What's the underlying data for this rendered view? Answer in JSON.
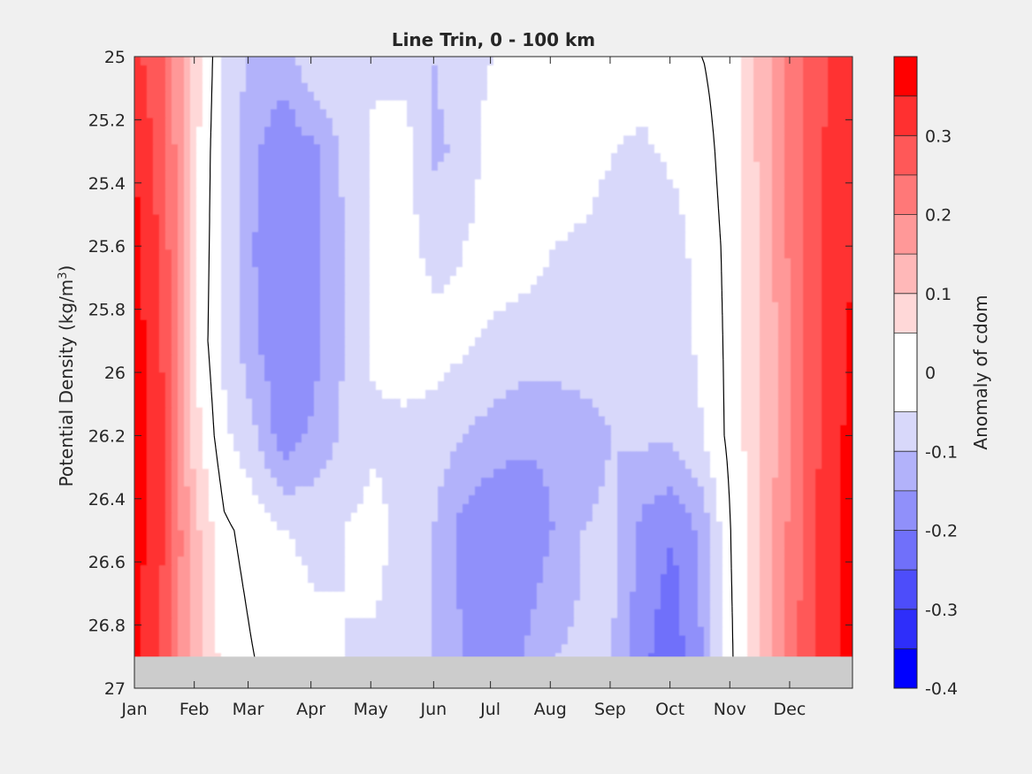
{
  "chart_data": {
    "type": "heatmap",
    "title": "Line Trin, 0 - 100 km",
    "xlabel": "",
    "ylabel_main": "Potential Density (kg/m",
    "ylabel_sup": "3",
    "ylabel_close": ")",
    "xlim": [
      0,
      12
    ],
    "ylim": [
      25,
      27
    ],
    "y_reversed": true,
    "x_ticks": [
      {
        "v": 0.0,
        "label": "Jan"
      },
      {
        "v": 1.0,
        "label": "Feb"
      },
      {
        "v": 1.9,
        "label": "Mar"
      },
      {
        "v": 2.95,
        "label": "Apr"
      },
      {
        "v": 3.95,
        "label": "May"
      },
      {
        "v": 5.0,
        "label": "Jun"
      },
      {
        "v": 5.95,
        "label": "Jul"
      },
      {
        "v": 6.95,
        "label": "Aug"
      },
      {
        "v": 7.95,
        "label": "Sep"
      },
      {
        "v": 8.95,
        "label": "Oct"
      },
      {
        "v": 9.95,
        "label": "Nov"
      },
      {
        "v": 10.95,
        "label": "Dec"
      }
    ],
    "y_ticks": [
      {
        "v": 25.0,
        "label": "25"
      },
      {
        "v": 25.2,
        "label": "25.2"
      },
      {
        "v": 25.4,
        "label": "25.4"
      },
      {
        "v": 25.6,
        "label": "25.6"
      },
      {
        "v": 25.8,
        "label": "25.8"
      },
      {
        "v": 26.0,
        "label": "26"
      },
      {
        "v": 26.2,
        "label": "26.2"
      },
      {
        "v": 26.4,
        "label": "26.4"
      },
      {
        "v": 26.6,
        "label": "26.6"
      },
      {
        "v": 26.8,
        "label": "26.8"
      },
      {
        "v": 27.0,
        "label": "27"
      }
    ],
    "masked_below_density": 26.9,
    "mask_color": "#cccccc",
    "colorbar": {
      "label": "Anomaly of cdom",
      "range": [
        -0.4,
        0.4
      ],
      "levels": [
        -0.4,
        -0.35,
        -0.3,
        -0.25,
        -0.2,
        -0.15,
        -0.1,
        -0.05,
        0.05,
        0.1,
        0.15,
        0.2,
        0.25,
        0.3,
        0.35,
        0.4
      ],
      "colors": [
        "#0000ff",
        "#2e2efa",
        "#4d4dfa",
        "#7070fa",
        "#9090fa",
        "#b2b2fa",
        "#d8d8fa",
        "#ffffff",
        "#ffd8d8",
        "#ffb8b8",
        "#ff9898",
        "#ff7878",
        "#ff5858",
        "#ff3030",
        "#ff0000"
      ],
      "ticks": [
        {
          "v": 0.3,
          "label": "0.3"
        },
        {
          "v": 0.2,
          "label": "0.2"
        },
        {
          "v": 0.1,
          "label": "0.1"
        },
        {
          "v": 0.0,
          "label": "0"
        },
        {
          "v": -0.1,
          "label": "-0.1"
        },
        {
          "v": -0.2,
          "label": "-0.2"
        },
        {
          "v": -0.3,
          "label": "-0.3"
        },
        {
          "v": -0.4,
          "label": "-0.4"
        }
      ]
    },
    "field_model": {
      "grid_x": [
        0,
        0.5,
        1,
        1.5,
        2,
        2.5,
        3,
        3.5,
        4,
        4.5,
        5,
        5.5,
        6,
        6.5,
        7,
        7.5,
        8,
        8.5,
        9,
        9.5,
        10,
        10.5,
        11,
        11.5,
        12
      ],
      "grid_y": [
        25.0,
        25.3,
        25.6,
        25.9,
        26.2,
        26.5,
        26.9
      ],
      "values": [
        [
          0.32,
          0.25,
          0.08,
          -0.05,
          -0.12,
          -0.12,
          -0.06,
          -0.06,
          -0.06,
          -0.08,
          -0.1,
          -0.07,
          -0.05,
          -0.03,
          -0.02,
          -0.02,
          -0.02,
          -0.02,
          -0.01,
          0.0,
          0.03,
          0.12,
          0.22,
          0.29,
          0.33
        ],
        [
          0.35,
          0.27,
          0.07,
          -0.06,
          -0.14,
          -0.19,
          -0.16,
          -0.09,
          -0.04,
          -0.02,
          -0.11,
          -0.09,
          -0.02,
          -0.01,
          -0.01,
          -0.02,
          -0.05,
          -0.06,
          -0.04,
          -0.02,
          0.03,
          0.12,
          0.22,
          0.3,
          0.34
        ],
        [
          0.37,
          0.28,
          0.06,
          -0.06,
          -0.15,
          -0.2,
          -0.17,
          -0.1,
          -0.04,
          -0.03,
          -0.07,
          -0.05,
          -0.02,
          -0.03,
          -0.05,
          -0.06,
          -0.08,
          -0.09,
          -0.07,
          -0.03,
          0.02,
          0.11,
          0.22,
          0.3,
          0.35
        ],
        [
          0.38,
          0.29,
          0.05,
          -0.06,
          -0.14,
          -0.2,
          -0.17,
          -0.1,
          -0.04,
          -0.01,
          -0.03,
          -0.04,
          -0.06,
          -0.07,
          -0.07,
          -0.07,
          -0.08,
          -0.08,
          -0.07,
          -0.04,
          0.02,
          0.1,
          0.21,
          0.3,
          0.36
        ],
        [
          0.39,
          0.3,
          0.08,
          -0.04,
          -0.09,
          -0.18,
          -0.14,
          -0.09,
          -0.06,
          -0.07,
          -0.07,
          -0.1,
          -0.12,
          -0.14,
          -0.14,
          -0.12,
          -0.1,
          -0.09,
          -0.09,
          -0.05,
          0.02,
          0.1,
          0.21,
          0.31,
          0.37
        ],
        [
          0.38,
          0.3,
          0.12,
          0.01,
          -0.02,
          -0.05,
          -0.06,
          -0.05,
          -0.03,
          -0.07,
          -0.1,
          -0.17,
          -0.2,
          -0.19,
          -0.15,
          -0.1,
          -0.09,
          -0.17,
          -0.2,
          -0.13,
          0.01,
          0.11,
          0.22,
          0.32,
          0.38
        ],
        [
          0.36,
          0.28,
          0.13,
          0.03,
          0.0,
          -0.02,
          -0.04,
          -0.05,
          -0.06,
          -0.07,
          -0.1,
          -0.15,
          -0.17,
          -0.15,
          -0.1,
          -0.09,
          -0.1,
          -0.19,
          -0.23,
          -0.15,
          0.0,
          0.12,
          0.23,
          0.33,
          0.37
        ]
      ]
    }
  }
}
